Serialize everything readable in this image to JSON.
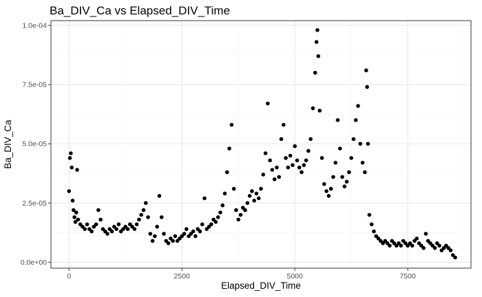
{
  "chart_data": {
    "type": "scatter",
    "title": "Ba_DIV_Ca vs Elapsed_DIV_Time",
    "xlabel": "Elapsed_DIV_Time",
    "ylabel": "Ba_DIV_Ca",
    "xlim": [
      -400,
      8900
    ],
    "ylim": [
      -2.5e-06,
      0.000102
    ],
    "x_ticks": [
      0,
      2500,
      5000,
      7500
    ],
    "x_tick_labels": [
      "0",
      "2500",
      "5000",
      "7500"
    ],
    "y_ticks": [
      0,
      2.5e-05,
      5e-05,
      7.5e-05,
      0.0001
    ],
    "y_tick_labels": [
      "0.0e+00",
      "2.5e-05",
      "5.0e-05",
      "7.5e-05",
      "1.0e-04"
    ],
    "grid": true,
    "point_color": "#000000",
    "points": [
      [
        0,
        3e-05
      ],
      [
        20,
        4.4e-05
      ],
      [
        40,
        4.6e-05
      ],
      [
        60,
        4e-05
      ],
      [
        80,
        2.6e-05
      ],
      [
        100,
        2.2e-05
      ],
      [
        120,
        1.9e-05
      ],
      [
        140,
        1.7e-05
      ],
      [
        160,
        2.1e-05
      ],
      [
        180,
        3.9e-05
      ],
      [
        200,
        1.8e-05
      ],
      [
        250,
        1.6e-05
      ],
      [
        300,
        1.5e-05
      ],
      [
        350,
        1.4e-05
      ],
      [
        400,
        1.6e-05
      ],
      [
        450,
        1.4e-05
      ],
      [
        500,
        1.3e-05
      ],
      [
        550,
        1.5e-05
      ],
      [
        600,
        1.6e-05
      ],
      [
        650,
        2.2e-05
      ],
      [
        700,
        1.8e-05
      ],
      [
        750,
        1.4e-05
      ],
      [
        800,
        1.3e-05
      ],
      [
        850,
        1.2e-05
      ],
      [
        900,
        1.4e-05
      ],
      [
        950,
        1.3e-05
      ],
      [
        1000,
        1.5e-05
      ],
      [
        1050,
        1.4e-05
      ],
      [
        1100,
        1.6e-05
      ],
      [
        1150,
        1.3e-05
      ],
      [
        1200,
        1.4e-05
      ],
      [
        1250,
        1.5e-05
      ],
      [
        1300,
        1.4e-05
      ],
      [
        1350,
        1.6e-05
      ],
      [
        1400,
        1.5e-05
      ],
      [
        1450,
        1.4e-05
      ],
      [
        1500,
        1.6e-05
      ],
      [
        1550,
        1.8e-05
      ],
      [
        1600,
        2e-05
      ],
      [
        1650,
        2.2e-05
      ],
      [
        1700,
        2.5e-05
      ],
      [
        1750,
        1.9e-05
      ],
      [
        1800,
        1.2e-05
      ],
      [
        1850,
        9e-06
      ],
      [
        1900,
        1.1e-05
      ],
      [
        1950,
        1.5e-05
      ],
      [
        2000,
        2.8e-05
      ],
      [
        2050,
        1.9e-05
      ],
      [
        2100,
        1.2e-05
      ],
      [
        2150,
        9e-06
      ],
      [
        2200,
        8e-06
      ],
      [
        2250,
        1e-05
      ],
      [
        2300,
        9e-06
      ],
      [
        2350,
        1.1e-05
      ],
      [
        2400,
        9e-06
      ],
      [
        2450,
        1e-05
      ],
      [
        2500,
        1.1e-05
      ],
      [
        2550,
        1.2e-05
      ],
      [
        2600,
        1.4e-05
      ],
      [
        2650,
        1.1e-05
      ],
      [
        2700,
        1.2e-05
      ],
      [
        2750,
        1.3e-05
      ],
      [
        2800,
        1.1e-05
      ],
      [
        2850,
        1.4e-05
      ],
      [
        2900,
        1.3e-05
      ],
      [
        2950,
        1.6e-05
      ],
      [
        3000,
        2.7e-05
      ],
      [
        3050,
        1.4e-05
      ],
      [
        3100,
        1.5e-05
      ],
      [
        3150,
        1.6e-05
      ],
      [
        3200,
        1.8e-05
      ],
      [
        3250,
        1.7e-05
      ],
      [
        3300,
        1.9e-05
      ],
      [
        3350,
        2.1e-05
      ],
      [
        3400,
        2.4e-05
      ],
      [
        3450,
        2.9e-05
      ],
      [
        3500,
        3.8e-05
      ],
      [
        3550,
        4.8e-05
      ],
      [
        3600,
        5.8e-05
      ],
      [
        3650,
        3.1e-05
      ],
      [
        3700,
        2.2e-05
      ],
      [
        3750,
        1.8e-05
      ],
      [
        3800,
        2e-05
      ],
      [
        3850,
        2.3e-05
      ],
      [
        3900,
        2.2e-05
      ],
      [
        3950,
        2.5e-05
      ],
      [
        4000,
        2.8e-05
      ],
      [
        4050,
        3e-05
      ],
      [
        4100,
        2.6e-05
      ],
      [
        4150,
        2.9e-05
      ],
      [
        4200,
        2.7e-05
      ],
      [
        4250,
        3.1e-05
      ],
      [
        4300,
        3.7e-05
      ],
      [
        4350,
        4.6e-05
      ],
      [
        4400,
        6.7e-05
      ],
      [
        4450,
        4.3e-05
      ],
      [
        4500,
        3.9e-05
      ],
      [
        4550,
        3.5e-05
      ],
      [
        4600,
        4e-05
      ],
      [
        4650,
        3.6e-05
      ],
      [
        4700,
        5.2e-05
      ],
      [
        4750,
        5.8e-05
      ],
      [
        4800,
        4.4e-05
      ],
      [
        4850,
        4e-05
      ],
      [
        4900,
        4.5e-05
      ],
      [
        4950,
        4.1e-05
      ],
      [
        5000,
        4.9e-05
      ],
      [
        5050,
        4.3e-05
      ],
      [
        5100,
        4e-05
      ],
      [
        5150,
        3.8e-05
      ],
      [
        5200,
        4.1e-05
      ],
      [
        5250,
        4.3e-05
      ],
      [
        5300,
        4.7e-05
      ],
      [
        5350,
        5.2e-05
      ],
      [
        5400,
        6.5e-05
      ],
      [
        5450,
        8e-05
      ],
      [
        5480,
        9.3e-05
      ],
      [
        5500,
        9.8e-05
      ],
      [
        5520,
        8.7e-05
      ],
      [
        5550,
        6.4e-05
      ],
      [
        5600,
        4.4e-05
      ],
      [
        5650,
        3.3e-05
      ],
      [
        5700,
        3e-05
      ],
      [
        5750,
        2.8e-05
      ],
      [
        5800,
        3.1e-05
      ],
      [
        5850,
        3.6e-05
      ],
      [
        5900,
        4.2e-05
      ],
      [
        5950,
        6e-05
      ],
      [
        6000,
        4.8e-05
      ],
      [
        6050,
        3.6e-05
      ],
      [
        6100,
        3.2e-05
      ],
      [
        6150,
        3.4e-05
      ],
      [
        6200,
        3.8e-05
      ],
      [
        6250,
        4.4e-05
      ],
      [
        6300,
        5.2e-05
      ],
      [
        6350,
        6e-05
      ],
      [
        6400,
        6.6e-05
      ],
      [
        6450,
        5e-05
      ],
      [
        6500,
        4.2e-05
      ],
      [
        6550,
        3.8e-05
      ],
      [
        6580,
        8.1e-05
      ],
      [
        6600,
        7.4e-05
      ],
      [
        6620,
        5e-05
      ],
      [
        6650,
        2e-05
      ],
      [
        6700,
        1.6e-05
      ],
      [
        6750,
        1.3e-05
      ],
      [
        6800,
        1.1e-05
      ],
      [
        6850,
        1e-05
      ],
      [
        6900,
        9e-06
      ],
      [
        6950,
        8e-06
      ],
      [
        7000,
        9e-06
      ],
      [
        7050,
        8e-06
      ],
      [
        7100,
        7e-06
      ],
      [
        7150,
        9e-06
      ],
      [
        7200,
        8e-06
      ],
      [
        7250,
        7e-06
      ],
      [
        7300,
        8e-06
      ],
      [
        7350,
        7e-06
      ],
      [
        7400,
        9e-06
      ],
      [
        7450,
        8e-06
      ],
      [
        7500,
        7e-06
      ],
      [
        7550,
        8e-06
      ],
      [
        7600,
        7e-06
      ],
      [
        7650,
        9e-06
      ],
      [
        7700,
        1e-05
      ],
      [
        7750,
        8e-06
      ],
      [
        7800,
        7e-06
      ],
      [
        7850,
        6e-06
      ],
      [
        7900,
        1.2e-05
      ],
      [
        7950,
        9e-06
      ],
      [
        8000,
        8e-06
      ],
      [
        8050,
        7e-06
      ],
      [
        8100,
        6e-06
      ],
      [
        8150,
        8e-06
      ],
      [
        8200,
        7e-06
      ],
      [
        8250,
        5e-06
      ],
      [
        8300,
        6e-06
      ],
      [
        8350,
        7e-06
      ],
      [
        8400,
        6e-06
      ],
      [
        8450,
        5e-06
      ],
      [
        8500,
        3e-06
      ],
      [
        8550,
        2e-06
      ]
    ]
  }
}
